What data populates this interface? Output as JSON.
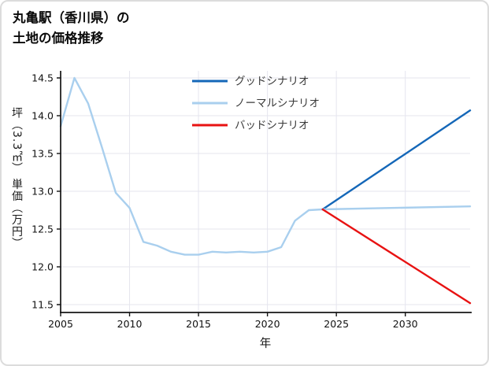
{
  "title": {
    "line1": "丸亀駅（香川県）の",
    "line2": "土地の価格推移"
  },
  "chart_data": {
    "type": "line",
    "title": "丸亀駅（香川県）の土地の価格推移",
    "xlabel": "年",
    "ylabel": "坪（3.3㎡） 単価（万円）",
    "xlim": [
      2005,
      2034.7
    ],
    "ylim": [
      11.5,
      14.5
    ],
    "xticks": [
      2005,
      2010,
      2015,
      2020,
      2025,
      2030
    ],
    "yticks": [
      11.5,
      12.0,
      12.5,
      13.0,
      13.5,
      14.0,
      14.5
    ],
    "grid": true,
    "legend_position": "upper-center-inside",
    "colors": {
      "good": "#1467b8",
      "normal": "#a9cfee",
      "history": "#a9cfee",
      "bad": "#e81212",
      "grid": "#e5e5ee",
      "axis": "#141414",
      "tick_text": "#111111",
      "legend_text": "#3a3a3a"
    },
    "series": [
      {
        "id": "history",
        "color": "#a9cfee",
        "x": [
          2005,
          2006,
          2007,
          2008,
          2009,
          2010,
          2011,
          2012,
          2013,
          2014,
          2015,
          2016,
          2017,
          2018,
          2019,
          2020,
          2021,
          2022,
          2023,
          2024
        ],
        "values": [
          13.86,
          14.5,
          14.16,
          13.58,
          12.98,
          12.78,
          12.33,
          12.28,
          12.2,
          12.16,
          12.16,
          12.2,
          12.19,
          12.2,
          12.19,
          12.2,
          12.26,
          12.61,
          12.75,
          12.76
        ]
      },
      {
        "id": "good-scenario",
        "color": "#1467b8",
        "x": [
          2024,
          2034.7
        ],
        "values": [
          12.76,
          14.07
        ]
      },
      {
        "id": "normal-scenario",
        "color": "#a9cfee",
        "x": [
          2024,
          2034.7
        ],
        "values": [
          12.76,
          12.8
        ]
      },
      {
        "id": "bad-scenario",
        "color": "#e81212",
        "x": [
          2024,
          2034.7
        ],
        "values": [
          12.76,
          11.52
        ]
      }
    ],
    "legend": [
      {
        "label": "グッドシナリオ",
        "series": "good-scenario"
      },
      {
        "label": "ノーマルシナリオ",
        "series": "normal-scenario"
      },
      {
        "label": "バッドシナリオ",
        "series": "bad-scenario"
      }
    ]
  }
}
